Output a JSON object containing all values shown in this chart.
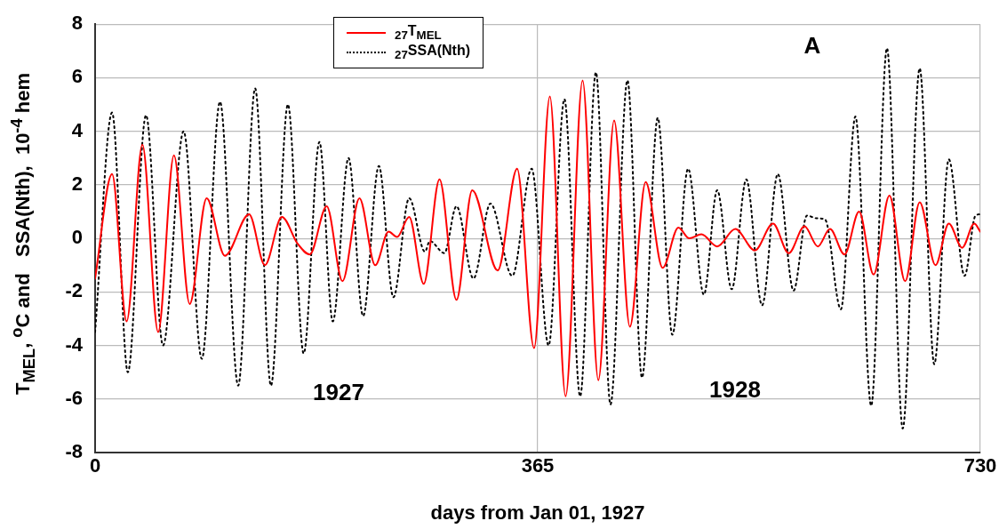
{
  "chart_data": {
    "type": "line",
    "xlabel": "days from Jan 01, 1927",
    "ylabel": "T$_{MEL}$, $^{o}$C and   SSA(Nth),  10$^{-4}$ hem",
    "xlim": [
      0,
      730
    ],
    "xticks": [
      0,
      365,
      730
    ],
    "ylim": [
      -8,
      8
    ],
    "yticks": [
      -8,
      -6,
      -4,
      -2,
      0,
      2,
      4,
      6,
      8
    ],
    "grid": true,
    "legend": "top",
    "marker": "none",
    "annotations": [
      "A",
      "1927",
      "1928"
    ],
    "series": [
      {
        "name": "$_{27}$T$_{MEL}$",
        "color": "#ff0000",
        "line_style": "solid",
        "x": [
          0,
          14,
          26,
          39,
          52,
          65,
          78,
          92,
          107,
          127,
          140,
          154,
          167,
          177,
          191,
          204,
          218,
          231,
          242,
          249,
          259,
          271,
          284,
          298,
          311,
          332,
          348,
          362,
          375,
          388,
          402,
          415,
          428,
          441,
          454,
          468,
          481,
          490,
          500,
          513,
          528,
          544,
          559,
          572,
          585,
          596,
          606,
          618,
          630,
          642,
          655,
          668,
          680,
          693,
          704,
          715,
          725,
          730
        ],
        "values": [
          -1.5,
          2.4,
          -3.1,
          3.5,
          -3.5,
          3.1,
          -2.45,
          1.5,
          -0.65,
          0.9,
          -1.0,
          0.8,
          -0.2,
          -0.6,
          1.2,
          -1.6,
          1.5,
          -1.0,
          0.25,
          0.05,
          0.8,
          -1.7,
          2.2,
          -2.3,
          1.8,
          -1.2,
          2.6,
          -4.1,
          5.3,
          -5.9,
          5.9,
          -5.3,
          4.4,
          -3.3,
          2.1,
          -1.1,
          0.4,
          0,
          0.15,
          -0.3,
          0.35,
          -0.45,
          0.55,
          -0.55,
          0.45,
          -0.3,
          0.35,
          -0.6,
          1.0,
          -1.35,
          1.6,
          -1.6,
          1.35,
          -1.0,
          0.55,
          -0.35,
          0.55,
          0.25
        ]
      },
      {
        "name": "$_{27}$SSA(Nth)",
        "color": "#000000",
        "line_style": "dotted",
        "x": [
          0,
          14,
          27,
          42,
          56,
          73,
          88,
          103,
          118,
          132,
          145,
          159,
          172,
          185,
          196,
          209,
          221,
          234,
          246,
          259,
          272,
          276,
          288,
          298,
          312,
          326,
          344,
          360,
          374,
          387,
          400,
          413,
          425,
          439,
          451,
          464,
          476,
          489,
          502,
          513,
          525,
          537,
          550,
          563,
          576,
          587,
          595,
          602,
          615,
          627,
          640,
          653,
          666,
          680,
          692,
          704,
          717,
          726,
          730
        ],
        "values": [
          -3.5,
          4.7,
          -5.0,
          4.6,
          -4.0,
          4.0,
          -4.5,
          5.1,
          -5.5,
          5.6,
          -5.5,
          5.0,
          -4.3,
          3.6,
          -3.1,
          3.0,
          -2.9,
          2.7,
          -2.2,
          1.5,
          -0.5,
          -0.1,
          -0.55,
          1.2,
          -1.5,
          1.3,
          -1.4,
          2.6,
          -4.0,
          5.2,
          -5.9,
          6.2,
          -6.2,
          5.9,
          -5.2,
          4.5,
          -3.6,
          2.6,
          -2.1,
          1.8,
          -1.9,
          2.2,
          -2.5,
          2.4,
          -1.95,
          0.85,
          0.75,
          0.7,
          -2.65,
          4.55,
          -6.25,
          7.1,
          -7.1,
          6.35,
          -4.7,
          2.95,
          -1.4,
          0.85,
          0.9
        ]
      }
    ]
  }
}
